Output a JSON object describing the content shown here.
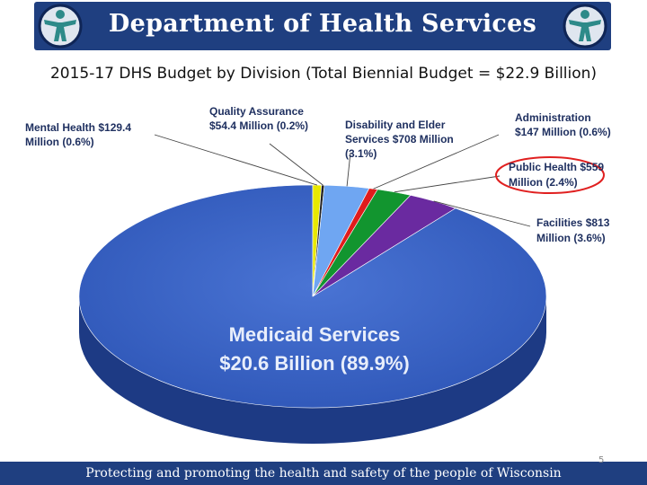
{
  "header": {
    "title": "Department of Health Services"
  },
  "slide_title": "2015-17 DHS Budget by Division (Total Biennial Budget = $22.9 Billion)",
  "footer": {
    "tagline": "Protecting and promoting the health and safety of the people of Wisconsin",
    "page": "5"
  },
  "chart_data": {
    "type": "pie",
    "title": "2015-17 DHS Budget by Division (Total Biennial Budget = $22.9 Billion)",
    "total": 22.9,
    "unit": "Billion",
    "series": [
      {
        "category": "Medicaid Services",
        "value_text": "$20.6 Billion",
        "percent_text": "(89.9%)",
        "value": 20.6,
        "percent": 89.9,
        "color": "#3b63c4"
      },
      {
        "category": "Mental Health",
        "value_text": "$129.4 Million",
        "percent_text": "(0.6%)",
        "value": 129.4,
        "percent": 0.6,
        "color": "#e8e800"
      },
      {
        "category": "Quality Assurance",
        "value_text": "$54.4 Million",
        "percent_text": "(0.2%)",
        "value": 54.4,
        "percent": 0.2,
        "color": "#202020"
      },
      {
        "category": "Disability and Elder Services",
        "value_text": "$708 Million",
        "percent_text": "(3.1%)",
        "value": 708,
        "percent": 3.1,
        "color": "#6fa6f2"
      },
      {
        "category": "Administration",
        "value_text": "$147 Million",
        "percent_text": "(0.6%)",
        "value": 147,
        "percent": 0.6,
        "color": "#e01c1c"
      },
      {
        "category": "Public Health",
        "value_text": "$559 Million",
        "percent_text": "(2.4%)",
        "value": 559,
        "percent": 2.4,
        "color": "#12952f",
        "highlighted": true,
        "highlight_color": "#e02020"
      },
      {
        "category": "Facilities",
        "value_text": "$813 Million",
        "percent_text": "(3.6%)",
        "value": 813,
        "percent": 3.6,
        "color": "#6a2aa0"
      }
    ],
    "labels": {
      "mental_health": [
        "Mental Health $129.4",
        "Million (0.6%)"
      ],
      "quality_assurance": [
        "Quality Assurance",
        "$54.4 Million (0.2%)"
      ],
      "disability": [
        "Disability and Elder",
        "Services $708 Million",
        "(3.1%)"
      ],
      "administration": [
        "Administration",
        "$147 Million (0.6%)"
      ],
      "public_health": [
        "Public Health $559",
        "Million (2.4%)"
      ],
      "facilities": [
        "Facilities $813",
        "Million (3.6%)"
      ],
      "medicaid": [
        "Medicaid Services",
        "$20.6 Billion (89.9%)"
      ]
    }
  }
}
